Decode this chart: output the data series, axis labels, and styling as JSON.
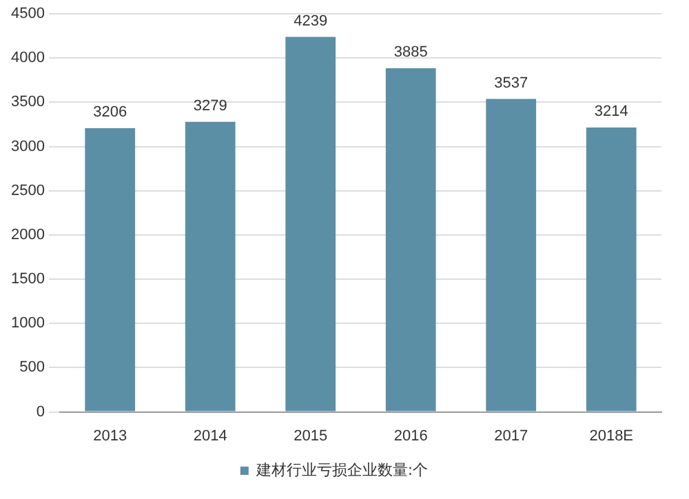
{
  "chart_data": {
    "type": "bar",
    "categories": [
      "2013",
      "2014",
      "2015",
      "2016",
      "2017",
      "2018E"
    ],
    "series": [
      {
        "name": "建材行业亏损企业数量:个",
        "color": "#5b8fa6",
        "values": [
          3206,
          3279,
          4239,
          3885,
          3537,
          3214
        ]
      }
    ],
    "ylim": [
      0,
      4500
    ],
    "yticks": [
      0,
      500,
      1000,
      1500,
      2000,
      2500,
      3000,
      3500,
      4000,
      4500
    ],
    "grid": "y",
    "legend": "bottom",
    "data_labels": true
  }
}
